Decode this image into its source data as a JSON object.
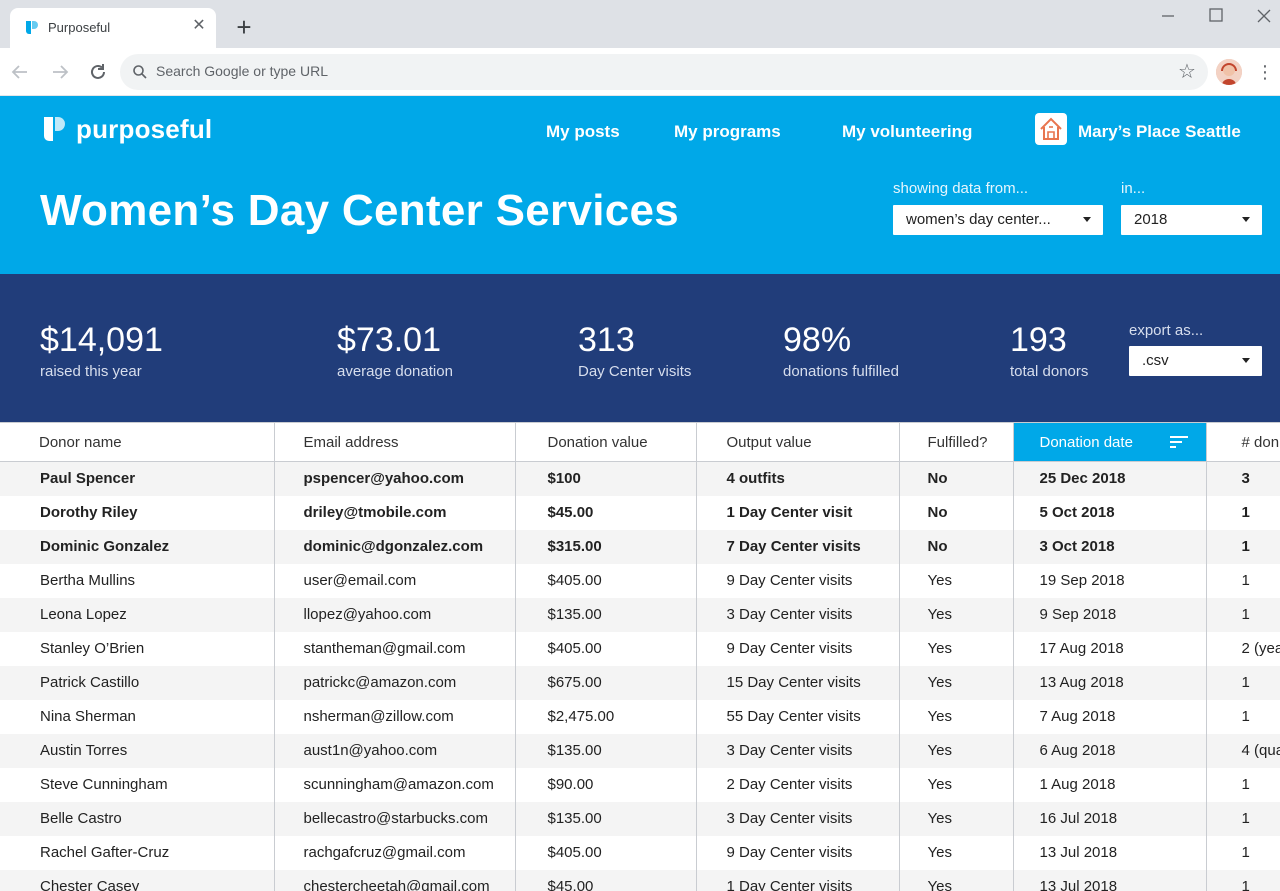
{
  "browser": {
    "tab_title": "Purposeful",
    "omnibox_placeholder": "Search Google or type URL"
  },
  "app": {
    "brand": "purposeful",
    "nav": [
      "My posts",
      "My programs",
      "My volunteering"
    ],
    "org_name": "Mary’s Place Seattle",
    "page_title": "Women’s Day Center Services",
    "filters": {
      "source_label": "showing data from...",
      "source_value": "women’s day center...",
      "year_label": "in...",
      "year_value": "2018"
    }
  },
  "stats": {
    "items": [
      {
        "value": "$14,091",
        "label": "raised this year"
      },
      {
        "value": "$73.01",
        "label": "average donation"
      },
      {
        "value": "313",
        "label": "Day Center visits"
      },
      {
        "value": "98%",
        "label": "donations fulfilled"
      },
      {
        "value": "193",
        "label": "total donors"
      }
    ],
    "export_label": "export as...",
    "export_value": ".csv"
  },
  "table": {
    "columns": [
      "Donor name",
      "Email address",
      "Donation value",
      "Output value",
      "Fulfilled?",
      "Donation date",
      "# don"
    ],
    "sorted_column": "Donation date",
    "rows": [
      {
        "name": "Paul Spencer",
        "email": "pspencer@yahoo.com",
        "value": "$100",
        "output": "4 outfits",
        "fulfilled": "No",
        "date": "25 Dec 2018",
        "count": "3",
        "bold": true
      },
      {
        "name": "Dorothy Riley",
        "email": "driley@tmobile.com",
        "value": "$45.00",
        "output": "1 Day Center visit",
        "fulfilled": "No",
        "date": "5 Oct 2018",
        "count": "1",
        "bold": true
      },
      {
        "name": "Dominic Gonzalez",
        "email": "dominic@dgonzalez.com",
        "value": "$315.00",
        "output": "7 Day Center visits",
        "fulfilled": "No",
        "date": "3 Oct 2018",
        "count": "1",
        "bold": true
      },
      {
        "name": "Bertha Mullins",
        "email": "user@email.com",
        "value": "$405.00",
        "output": "9 Day Center visits",
        "fulfilled": "Yes",
        "date": "19 Sep 2018",
        "count": "1",
        "bold": false
      },
      {
        "name": "Leona Lopez",
        "email": "llopez@yahoo.com",
        "value": "$135.00",
        "output": "3 Day Center visits",
        "fulfilled": "Yes",
        "date": "9 Sep 2018",
        "count": "1",
        "bold": false
      },
      {
        "name": "Stanley O’Brien",
        "email": "stantheman@gmail.com",
        "value": "$405.00",
        "output": "9 Day Center visits",
        "fulfilled": "Yes",
        "date": "17 Aug 2018",
        "count": "2 (yea",
        "bold": false
      },
      {
        "name": "Patrick Castillo",
        "email": "patrickc@amazon.com",
        "value": "$675.00",
        "output": "15 Day Center visits",
        "fulfilled": "Yes",
        "date": "13 Aug 2018",
        "count": "1",
        "bold": false
      },
      {
        "name": "Nina Sherman",
        "email": "nsherman@zillow.com",
        "value": "$2,475.00",
        "output": "55 Day Center visits",
        "fulfilled": "Yes",
        "date": "7 Aug 2018",
        "count": "1",
        "bold": false
      },
      {
        "name": "Austin Torres",
        "email": "aust1n@yahoo.com",
        "value": "$135.00",
        "output": "3 Day Center visits",
        "fulfilled": "Yes",
        "date": "6 Aug 2018",
        "count": "4 (qua",
        "bold": false
      },
      {
        "name": "Steve Cunningham",
        "email": "scunningham@amazon.com",
        "value": "$90.00",
        "output": "2 Day Center visits",
        "fulfilled": "Yes",
        "date": "1 Aug 2018",
        "count": "1",
        "bold": false
      },
      {
        "name": "Belle Castro",
        "email": "bellecastro@starbucks.com",
        "value": "$135.00",
        "output": "3 Day Center visits",
        "fulfilled": "Yes",
        "date": "16 Jul 2018",
        "count": "1",
        "bold": false
      },
      {
        "name": "Rachel Gafter-Cruz",
        "email": "rachgafcruz@gmail.com",
        "value": "$405.00",
        "output": "9 Day Center visits",
        "fulfilled": "Yes",
        "date": "13 Jul 2018",
        "count": "1",
        "bold": false
      },
      {
        "name": "Chester Casey",
        "email": "chestercheetah@gmail.com",
        "value": "$45.00",
        "output": "1 Day Center visits",
        "fulfilled": "Yes",
        "date": "13 Jul 2018",
        "count": "1",
        "bold": false
      }
    ]
  },
  "colors": {
    "header_blue": "#00a8e8",
    "stats_navy": "#213d7a",
    "sorted_header": "#00a8e8"
  },
  "icons": [
    "purposeful-logo-icon",
    "close-icon",
    "plus-icon",
    "minimize-icon",
    "maximize-icon",
    "window-close-icon",
    "back-icon",
    "forward-icon",
    "reload-icon",
    "search-icon",
    "star-icon",
    "more-vert-icon",
    "house-icon",
    "chevron-down-icon",
    "sort-icon"
  ]
}
